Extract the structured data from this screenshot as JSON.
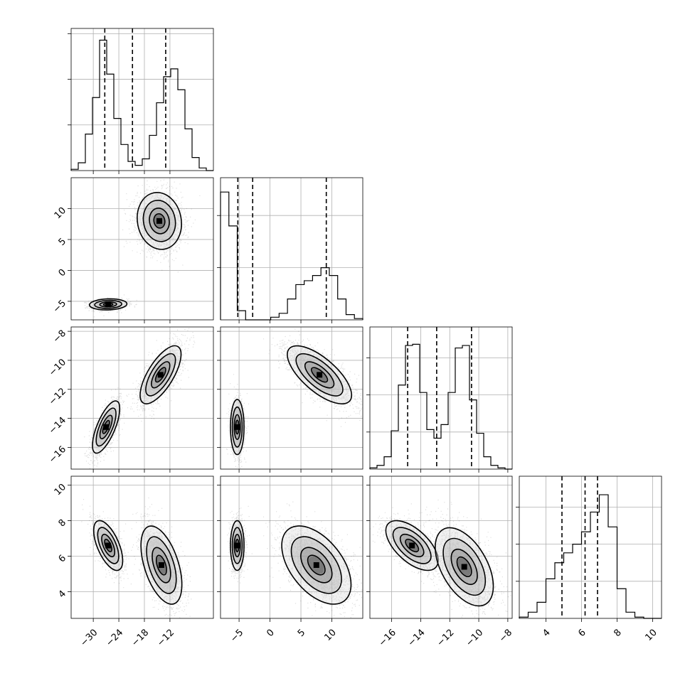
{
  "chart_data": {
    "type": "corner",
    "params": [
      {
        "range": [
          -35.2,
          -1.8
        ],
        "ticks": [
          -30,
          -24,
          -18,
          -12
        ],
        "quantiles": [
          -27.3,
          -20.8,
          -13.0
        ],
        "hist": [
          0.01,
          0.06,
          0.28,
          0.56,
          1.0,
          0.74,
          0.4,
          0.2,
          0.07,
          0.04,
          0.09,
          0.27,
          0.52,
          0.72,
          0.78,
          0.62,
          0.32,
          0.1,
          0.02,
          0.0
        ],
        "grid_max": 1.09
      },
      {
        "range": [
          -8.0,
          15.0
        ],
        "ticks": [
          -5,
          0,
          5,
          10
        ],
        "quantiles": [
          -5.2,
          -2.8,
          9.1
        ],
        "hist": [
          0.98,
          0.72,
          0.07,
          0.0,
          0.0,
          0.0,
          0.02,
          0.05,
          0.16,
          0.27,
          0.3,
          0.34,
          0.4,
          0.34,
          0.16,
          0.04,
          0.01
        ],
        "grid_max": 1.09,
        "axis_ticks": [
          -5,
          0,
          5,
          10
        ],
        "hist_ticks": [
          0.4,
          0.8
        ]
      },
      {
        "range": [
          -17.5,
          -7.7
        ],
        "ticks": [
          -16,
          -14,
          -12,
          -10,
          -8
        ],
        "quantiles": [
          -14.9,
          -12.9,
          -10.5
        ],
        "hist": [
          0.01,
          0.03,
          0.1,
          0.31,
          0.68,
          1.0,
          1.01,
          0.62,
          0.32,
          0.25,
          0.36,
          0.62,
          0.98,
          1.0,
          0.56,
          0.29,
          0.1,
          0.03,
          0.01,
          0.0
        ],
        "grid_max": 1.15
      },
      {
        "range": [
          2.5,
          10.5
        ],
        "ticks": [
          4,
          6,
          8,
          10
        ],
        "quantiles": [
          4.9,
          6.2,
          6.9
        ],
        "hist": [
          0.01,
          0.05,
          0.13,
          0.32,
          0.45,
          0.53,
          0.6,
          0.7,
          0.86,
          1.0,
          0.74,
          0.24,
          0.05,
          0.01,
          0.0,
          0.0
        ],
        "grid_max": 1.15
      }
    ],
    "pairs": [
      {
        "row": 1,
        "col": 0,
        "clusters": [
          {
            "cx": -26.5,
            "cy": -5.5,
            "sx": 2.2,
            "sy": 0.45,
            "rho": 0.1,
            "n": 900
          },
          {
            "cx": -14.5,
            "cy": 8.0,
            "sx": 2.6,
            "sy": 2.3,
            "rho": -0.1,
            "n": 2400
          }
        ]
      },
      {
        "row": 2,
        "col": 0,
        "clusters": [
          {
            "cx": -27.0,
            "cy": -14.6,
            "sx": 1.6,
            "sy": 0.9,
            "rho": 0.7,
            "n": 1800
          },
          {
            "cx": -14.2,
            "cy": -11.0,
            "sx": 2.4,
            "sy": 1.0,
            "rho": 0.7,
            "n": 2200
          }
        ]
      },
      {
        "row": 2,
        "col": 1,
        "clusters": [
          {
            "cx": -5.3,
            "cy": -14.6,
            "sx": 0.55,
            "sy": 0.95,
            "rho": 0.0,
            "n": 1500
          },
          {
            "cx": 8.0,
            "cy": -11.0,
            "sx": 2.6,
            "sy": 1.0,
            "rho": -0.7,
            "n": 2300
          }
        ]
      },
      {
        "row": 3,
        "col": 0,
        "clusters": [
          {
            "cx": -26.5,
            "cy": 6.6,
            "sx": 1.7,
            "sy": 0.7,
            "rho": -0.6,
            "n": 1800
          },
          {
            "cx": -14.0,
            "cy": 5.5,
            "sx": 2.4,
            "sy": 1.1,
            "rho": -0.5,
            "n": 2200
          }
        ]
      },
      {
        "row": 3,
        "col": 1,
        "clusters": [
          {
            "cx": -5.3,
            "cy": 6.6,
            "sx": 0.55,
            "sy": 0.7,
            "rho": 0.0,
            "n": 1500
          },
          {
            "cx": 7.5,
            "cy": 5.5,
            "sx": 2.8,
            "sy": 1.1,
            "rho": -0.5,
            "n": 2300
          }
        ]
      },
      {
        "row": 3,
        "col": 2,
        "clusters": [
          {
            "cx": -14.6,
            "cy": 6.6,
            "sx": 0.9,
            "sy": 0.7,
            "rho": -0.6,
            "n": 1800
          },
          {
            "cx": -11.0,
            "cy": 5.4,
            "sx": 1.0,
            "sy": 1.1,
            "rho": -0.5,
            "n": 2300
          }
        ]
      }
    ],
    "title": "",
    "xlabel": "",
    "ylabel": "",
    "grid": true
  }
}
